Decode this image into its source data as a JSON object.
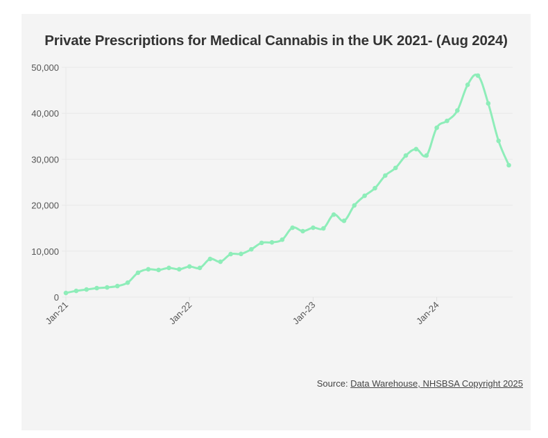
{
  "chart_data": {
    "type": "line",
    "title": "Private Prescriptions for Medical Cannabis in the UK 2021- (Aug 2024)",
    "xlabel": "",
    "ylabel": "",
    "ylim": [
      0,
      50000
    ],
    "yticks": [
      0,
      10000,
      20000,
      30000,
      40000,
      50000
    ],
    "ytick_labels": [
      "0",
      "10,000",
      "20,000",
      "30,000",
      "40,000",
      "50,000"
    ],
    "xtick_labels": [
      "Jan-21",
      "Jan-22",
      "Jan-23",
      "Jan-24"
    ],
    "xtick_indices": [
      0,
      12,
      24,
      36
    ],
    "grid": true,
    "legend": "none",
    "line_color": "#8eedb9",
    "x": [
      "Jan-21",
      "Feb-21",
      "Mar-21",
      "Apr-21",
      "May-21",
      "Jun-21",
      "Jul-21",
      "Aug-21",
      "Sep-21",
      "Oct-21",
      "Nov-21",
      "Dec-21",
      "Jan-22",
      "Feb-22",
      "Mar-22",
      "Apr-22",
      "May-22",
      "Jun-22",
      "Jul-22",
      "Aug-22",
      "Sep-22",
      "Oct-22",
      "Nov-22",
      "Dec-22",
      "Jan-23",
      "Feb-23",
      "Mar-23",
      "Apr-23",
      "May-23",
      "Jun-23",
      "Jul-23",
      "Aug-23",
      "Sep-23",
      "Oct-23",
      "Nov-23",
      "Dec-23",
      "Jan-24",
      "Feb-24",
      "Mar-24",
      "Apr-24",
      "May-24",
      "Jun-24",
      "Jul-24",
      "Aug-24"
    ],
    "series": [
      {
        "name": "Private Prescriptions",
        "values": [
          900,
          1350,
          1650,
          1950,
          2100,
          2400,
          3150,
          5300,
          6050,
          5900,
          6350,
          6050,
          6650,
          6350,
          8300,
          7700,
          9350,
          9400,
          10400,
          11800,
          11900,
          12500,
          15100,
          14350,
          15100,
          14950,
          17950,
          16600,
          19950,
          22050,
          23700,
          26450,
          28100,
          30800,
          32200,
          30800,
          36850,
          38350,
          40600,
          46200,
          48200,
          42150,
          34000,
          28700
        ]
      }
    ]
  },
  "source": {
    "prefix": "Source: ",
    "link_text": "Data Warehouse, NHSBSA Copyright 2025"
  }
}
